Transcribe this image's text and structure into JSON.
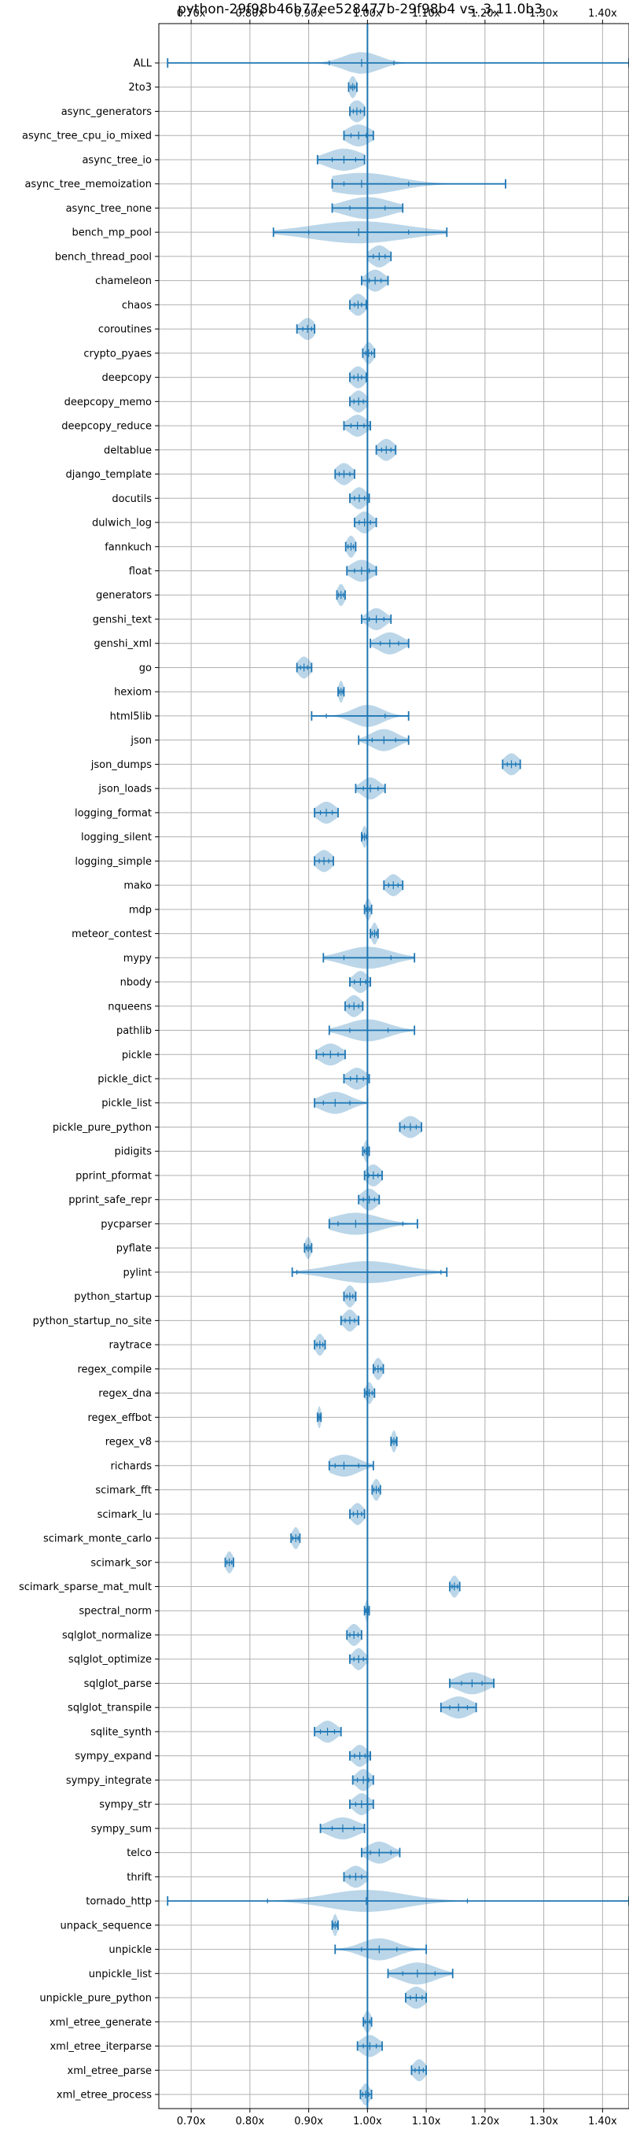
{
  "chart_data": {
    "type": "violin",
    "title": "python-29f98b46b77ee528477b-29f98b4 vs. 3.11.0b3",
    "xlim": [
      0.645,
      1.445
    ],
    "x_ticks": [
      0.7,
      0.8,
      0.9,
      1.0,
      1.1,
      1.2,
      1.3,
      1.4
    ],
    "x_tick_labels": [
      "0.70x",
      "0.80x",
      "0.90x",
      "1.00x",
      "1.10x",
      "1.20x",
      "1.30x",
      "1.40x"
    ],
    "reference_x": 1.0,
    "grid": true,
    "colors": {
      "violin": "#1f77b4",
      "grid": "#b0b0b0"
    },
    "series": [
      {
        "name": "ALL",
        "min": 0.66,
        "max": 1.445,
        "median": 0.99,
        "q1": 0.935,
        "q3": 1.045,
        "spread": 0.03
      },
      {
        "name": "2to3",
        "min": 0.968,
        "max": 0.982,
        "median": 0.975,
        "q1": 0.972,
        "q3": 0.978,
        "spread": 0.006
      },
      {
        "name": "async_generators",
        "min": 0.97,
        "max": 0.995,
        "median": 0.982,
        "q1": 0.976,
        "q3": 0.988,
        "spread": 0.012
      },
      {
        "name": "async_tree_cpu_io_mixed",
        "min": 0.96,
        "max": 1.01,
        "median": 0.985,
        "q1": 0.972,
        "q3": 0.998,
        "spread": 0.02
      },
      {
        "name": "async_tree_io",
        "min": 0.915,
        "max": 0.995,
        "median": 0.96,
        "q1": 0.94,
        "q3": 0.98,
        "spread": 0.03
      },
      {
        "name": "async_tree_memoization",
        "min": 0.94,
        "max": 1.235,
        "median": 0.99,
        "q1": 0.96,
        "q3": 1.07,
        "spread": 0.06
      },
      {
        "name": "async_tree_none",
        "min": 0.94,
        "max": 1.06,
        "median": 1.0,
        "q1": 0.97,
        "q3": 1.03,
        "spread": 0.04
      },
      {
        "name": "bench_mp_pool",
        "min": 0.84,
        "max": 1.135,
        "median": 0.985,
        "q1": 0.9,
        "q3": 1.07,
        "spread": 0.08
      },
      {
        "name": "bench_thread_pool",
        "min": 1.0,
        "max": 1.04,
        "median": 1.02,
        "q1": 1.01,
        "q3": 1.03,
        "spread": 0.015
      },
      {
        "name": "chameleon",
        "min": 0.99,
        "max": 1.035,
        "median": 1.013,
        "q1": 1.003,
        "q3": 1.023,
        "spread": 0.015
      },
      {
        "name": "chaos",
        "min": 0.97,
        "max": 0.998,
        "median": 0.984,
        "q1": 0.978,
        "q3": 0.99,
        "spread": 0.012
      },
      {
        "name": "coroutines",
        "min": 0.88,
        "max": 0.91,
        "median": 0.898,
        "q1": 0.89,
        "q3": 0.905,
        "spread": 0.012
      },
      {
        "name": "crypto_pyaes",
        "min": 0.992,
        "max": 1.012,
        "median": 1.002,
        "q1": 0.997,
        "q3": 1.007,
        "spread": 0.008
      },
      {
        "name": "deepcopy",
        "min": 0.97,
        "max": 0.998,
        "median": 0.984,
        "q1": 0.977,
        "q3": 0.99,
        "spread": 0.012
      },
      {
        "name": "deepcopy_memo",
        "min": 0.97,
        "max": 1.0,
        "median": 0.985,
        "q1": 0.977,
        "q3": 0.993,
        "spread": 0.012
      },
      {
        "name": "deepcopy_reduce",
        "min": 0.96,
        "max": 1.005,
        "median": 0.983,
        "q1": 0.972,
        "q3": 0.994,
        "spread": 0.015
      },
      {
        "name": "deltablue",
        "min": 1.015,
        "max": 1.048,
        "median": 1.032,
        "q1": 1.024,
        "q3": 1.04,
        "spread": 0.013
      },
      {
        "name": "django_template",
        "min": 0.945,
        "max": 0.978,
        "median": 0.96,
        "q1": 0.952,
        "q3": 0.97,
        "spread": 0.013
      },
      {
        "name": "docutils",
        "min": 0.97,
        "max": 1.003,
        "median": 0.986,
        "q1": 0.978,
        "q3": 0.995,
        "spread": 0.012
      },
      {
        "name": "dulwich_log",
        "min": 0.978,
        "max": 1.015,
        "median": 0.995,
        "q1": 0.986,
        "q3": 1.005,
        "spread": 0.013
      },
      {
        "name": "fannkuch",
        "min": 0.963,
        "max": 0.98,
        "median": 0.972,
        "q1": 0.967,
        "q3": 0.976,
        "spread": 0.007
      },
      {
        "name": "float",
        "min": 0.965,
        "max": 1.015,
        "median": 0.99,
        "q1": 0.978,
        "q3": 1.003,
        "spread": 0.018
      },
      {
        "name": "generators",
        "min": 0.948,
        "max": 0.962,
        "median": 0.955,
        "q1": 0.951,
        "q3": 0.959,
        "spread": 0.006
      },
      {
        "name": "genshi_text",
        "min": 0.99,
        "max": 1.04,
        "median": 1.015,
        "q1": 1.003,
        "q3": 1.028,
        "spread": 0.015
      },
      {
        "name": "genshi_xml",
        "min": 1.005,
        "max": 1.07,
        "median": 1.038,
        "q1": 1.022,
        "q3": 1.053,
        "spread": 0.02
      },
      {
        "name": "go",
        "min": 0.88,
        "max": 0.905,
        "median": 0.892,
        "q1": 0.886,
        "q3": 0.898,
        "spread": 0.01
      },
      {
        "name": "hexiom",
        "min": 0.95,
        "max": 0.96,
        "median": 0.955,
        "q1": 0.952,
        "q3": 0.958,
        "spread": 0.004
      },
      {
        "name": "html5lib",
        "min": 0.905,
        "max": 1.07,
        "median": 1.0,
        "q1": 0.93,
        "q3": 1.03,
        "spread": 0.025
      },
      {
        "name": "json",
        "min": 0.985,
        "max": 1.07,
        "median": 1.028,
        "q1": 1.008,
        "q3": 1.048,
        "spread": 0.022
      },
      {
        "name": "json_dumps",
        "min": 1.23,
        "max": 1.26,
        "median": 1.245,
        "q1": 1.238,
        "q3": 1.252,
        "spread": 0.012
      },
      {
        "name": "json_loads",
        "min": 0.98,
        "max": 1.03,
        "median": 1.005,
        "q1": 0.993,
        "q3": 1.018,
        "spread": 0.015
      },
      {
        "name": "logging_format",
        "min": 0.91,
        "max": 0.95,
        "median": 0.93,
        "q1": 0.92,
        "q3": 0.94,
        "spread": 0.015
      },
      {
        "name": "logging_silent",
        "min": 0.99,
        "max": 1.0,
        "median": 0.995,
        "q1": 0.992,
        "q3": 0.998,
        "spread": 0.004
      },
      {
        "name": "logging_simple",
        "min": 0.91,
        "max": 0.942,
        "median": 0.926,
        "q1": 0.918,
        "q3": 0.934,
        "spread": 0.013
      },
      {
        "name": "mako",
        "min": 1.028,
        "max": 1.06,
        "median": 1.044,
        "q1": 1.036,
        "q3": 1.052,
        "spread": 0.012
      },
      {
        "name": "mdp",
        "min": 0.995,
        "max": 1.007,
        "median": 1.001,
        "q1": 0.998,
        "q3": 1.004,
        "spread": 0.005
      },
      {
        "name": "meteor_contest",
        "min": 1.005,
        "max": 1.018,
        "median": 1.012,
        "q1": 1.008,
        "q3": 1.015,
        "spread": 0.005
      },
      {
        "name": "mypy",
        "min": 0.925,
        "max": 1.08,
        "median": 1.0,
        "q1": 0.96,
        "q3": 1.04,
        "spread": 0.04
      },
      {
        "name": "nbody",
        "min": 0.97,
        "max": 1.005,
        "median": 0.988,
        "q1": 0.978,
        "q3": 0.997,
        "spread": 0.012
      },
      {
        "name": "nqueens",
        "min": 0.962,
        "max": 0.992,
        "median": 0.977,
        "q1": 0.969,
        "q3": 0.985,
        "spread": 0.012
      },
      {
        "name": "pathlib",
        "min": 0.935,
        "max": 1.08,
        "median": 1.0,
        "q1": 0.97,
        "q3": 1.035,
        "spread": 0.035
      },
      {
        "name": "pickle",
        "min": 0.913,
        "max": 0.962,
        "median": 0.937,
        "q1": 0.925,
        "q3": 0.95,
        "spread": 0.018
      },
      {
        "name": "pickle_dict",
        "min": 0.96,
        "max": 1.003,
        "median": 0.982,
        "q1": 0.971,
        "q3": 0.993,
        "spread": 0.015
      },
      {
        "name": "pickle_list",
        "min": 0.91,
        "max": 1.0,
        "median": 0.945,
        "q1": 0.925,
        "q3": 0.97,
        "spread": 0.025
      },
      {
        "name": "pickle_pure_python",
        "min": 1.055,
        "max": 1.092,
        "median": 1.073,
        "q1": 1.063,
        "q3": 1.083,
        "spread": 0.015
      },
      {
        "name": "pidigits",
        "min": 0.992,
        "max": 1.003,
        "median": 0.998,
        "q1": 0.995,
        "q3": 1.0,
        "spread": 0.004
      },
      {
        "name": "pprint_pformat",
        "min": 0.995,
        "max": 1.025,
        "median": 1.01,
        "q1": 1.002,
        "q3": 1.018,
        "spread": 0.012
      },
      {
        "name": "pprint_safe_repr",
        "min": 0.985,
        "max": 1.02,
        "median": 1.003,
        "q1": 0.993,
        "q3": 1.012,
        "spread": 0.013
      },
      {
        "name": "pycparser",
        "min": 0.935,
        "max": 1.085,
        "median": 0.98,
        "q1": 0.95,
        "q3": 1.06,
        "spread": 0.04
      },
      {
        "name": "pyflate",
        "min": 0.893,
        "max": 0.905,
        "median": 0.899,
        "q1": 0.896,
        "q3": 0.902,
        "spread": 0.005
      },
      {
        "name": "pylint",
        "min": 0.872,
        "max": 1.135,
        "median": 1.0,
        "q1": 0.88,
        "q3": 1.125,
        "spread": 0.06
      },
      {
        "name": "python_startup",
        "min": 0.96,
        "max": 0.98,
        "median": 0.97,
        "q1": 0.965,
        "q3": 0.975,
        "spread": 0.008
      },
      {
        "name": "python_startup_no_site",
        "min": 0.955,
        "max": 0.985,
        "median": 0.97,
        "q1": 0.962,
        "q3": 0.978,
        "spread": 0.01
      },
      {
        "name": "raytrace",
        "min": 0.91,
        "max": 0.928,
        "median": 0.919,
        "q1": 0.914,
        "q3": 0.924,
        "spread": 0.007
      },
      {
        "name": "regex_compile",
        "min": 1.01,
        "max": 1.027,
        "median": 1.018,
        "q1": 1.013,
        "q3": 1.023,
        "spread": 0.007
      },
      {
        "name": "regex_dna",
        "min": 0.995,
        "max": 1.012,
        "median": 1.003,
        "q1": 0.998,
        "q3": 1.008,
        "spread": 0.006
      },
      {
        "name": "regex_effbot",
        "min": 0.915,
        "max": 0.921,
        "median": 0.918,
        "q1": 0.916,
        "q3": 0.92,
        "spread": 0.003
      },
      {
        "name": "regex_v8",
        "min": 1.04,
        "max": 1.05,
        "median": 1.045,
        "q1": 1.042,
        "q3": 1.048,
        "spread": 0.004
      },
      {
        "name": "richards",
        "min": 0.935,
        "max": 1.01,
        "median": 0.96,
        "q1": 0.945,
        "q3": 0.985,
        "spread": 0.025
      },
      {
        "name": "scimark_fft",
        "min": 1.008,
        "max": 1.022,
        "median": 1.015,
        "q1": 1.011,
        "q3": 1.019,
        "spread": 0.006
      },
      {
        "name": "scimark_lu",
        "min": 0.97,
        "max": 0.995,
        "median": 0.983,
        "q1": 0.976,
        "q3": 0.99,
        "spread": 0.01
      },
      {
        "name": "scimark_monte_carlo",
        "min": 0.87,
        "max": 0.885,
        "median": 0.878,
        "q1": 0.873,
        "q3": 0.882,
        "spread": 0.006
      },
      {
        "name": "scimark_sor",
        "min": 0.758,
        "max": 0.772,
        "median": 0.765,
        "q1": 0.761,
        "q3": 0.769,
        "spread": 0.006
      },
      {
        "name": "scimark_sparse_mat_mult",
        "min": 1.14,
        "max": 1.157,
        "median": 1.148,
        "q1": 1.144,
        "q3": 1.153,
        "spread": 0.007
      },
      {
        "name": "spectral_norm",
        "min": 0.995,
        "max": 1.003,
        "median": 0.999,
        "q1": 0.997,
        "q3": 1.001,
        "spread": 0.003
      },
      {
        "name": "sqlglot_normalize",
        "min": 0.965,
        "max": 0.99,
        "median": 0.977,
        "q1": 0.97,
        "q3": 0.984,
        "spread": 0.01
      },
      {
        "name": "sqlglot_optimize",
        "min": 0.97,
        "max": 1.0,
        "median": 0.985,
        "q1": 0.977,
        "q3": 0.993,
        "spread": 0.01
      },
      {
        "name": "sqlglot_parse",
        "min": 1.14,
        "max": 1.215,
        "median": 1.178,
        "q1": 1.16,
        "q3": 1.195,
        "spread": 0.025
      },
      {
        "name": "sqlglot_transpile",
        "min": 1.125,
        "max": 1.185,
        "median": 1.155,
        "q1": 1.14,
        "q3": 1.17,
        "spread": 0.022
      },
      {
        "name": "sqlite_synth",
        "min": 0.91,
        "max": 0.955,
        "median": 0.932,
        "q1": 0.92,
        "q3": 0.944,
        "spread": 0.015
      },
      {
        "name": "sympy_expand",
        "min": 0.97,
        "max": 1.005,
        "median": 0.987,
        "q1": 0.978,
        "q3": 0.996,
        "spread": 0.012
      },
      {
        "name": "sympy_integrate",
        "min": 0.975,
        "max": 1.01,
        "median": 0.993,
        "q1": 0.983,
        "q3": 1.002,
        "spread": 0.012
      },
      {
        "name": "sympy_str",
        "min": 0.97,
        "max": 1.01,
        "median": 0.99,
        "q1": 0.98,
        "q3": 1.0,
        "spread": 0.013
      },
      {
        "name": "sympy_sum",
        "min": 0.92,
        "max": 0.995,
        "median": 0.958,
        "q1": 0.94,
        "q3": 0.977,
        "spread": 0.025
      },
      {
        "name": "telco",
        "min": 0.99,
        "max": 1.055,
        "median": 1.02,
        "q1": 1.005,
        "q3": 1.04,
        "spread": 0.02
      },
      {
        "name": "thrift",
        "min": 0.96,
        "max": 1.0,
        "median": 0.98,
        "q1": 0.97,
        "q3": 0.99,
        "spread": 0.015
      },
      {
        "name": "tornado_http",
        "min": 0.66,
        "max": 1.445,
        "median": 0.998,
        "q1": 0.83,
        "q3": 1.17,
        "spread": 0.065
      },
      {
        "name": "unpack_sequence",
        "min": 0.94,
        "max": 0.95,
        "median": 0.945,
        "q1": 0.942,
        "q3": 0.948,
        "spread": 0.004
      },
      {
        "name": "unpickle",
        "min": 0.945,
        "max": 1.1,
        "median": 1.02,
        "q1": 0.99,
        "q3": 1.05,
        "spread": 0.03
      },
      {
        "name": "unpickle_list",
        "min": 1.035,
        "max": 1.145,
        "median": 1.085,
        "q1": 1.06,
        "q3": 1.115,
        "spread": 0.03
      },
      {
        "name": "unpickle_pure_python",
        "min": 1.065,
        "max": 1.1,
        "median": 1.083,
        "q1": 1.073,
        "q3": 1.093,
        "spread": 0.015
      },
      {
        "name": "xml_etree_generate",
        "min": 0.993,
        "max": 1.007,
        "median": 1.0,
        "q1": 0.996,
        "q3": 1.004,
        "spread": 0.006
      },
      {
        "name": "xml_etree_iterparse",
        "min": 0.983,
        "max": 1.025,
        "median": 1.004,
        "q1": 0.993,
        "q3": 1.015,
        "spread": 0.015
      },
      {
        "name": "xml_etree_parse",
        "min": 1.075,
        "max": 1.1,
        "median": 1.088,
        "q1": 1.081,
        "q3": 1.095,
        "spread": 0.01
      },
      {
        "name": "xml_etree_process",
        "min": 0.988,
        "max": 1.007,
        "median": 0.997,
        "q1": 0.992,
        "q3": 1.002,
        "spread": 0.007
      }
    ]
  }
}
